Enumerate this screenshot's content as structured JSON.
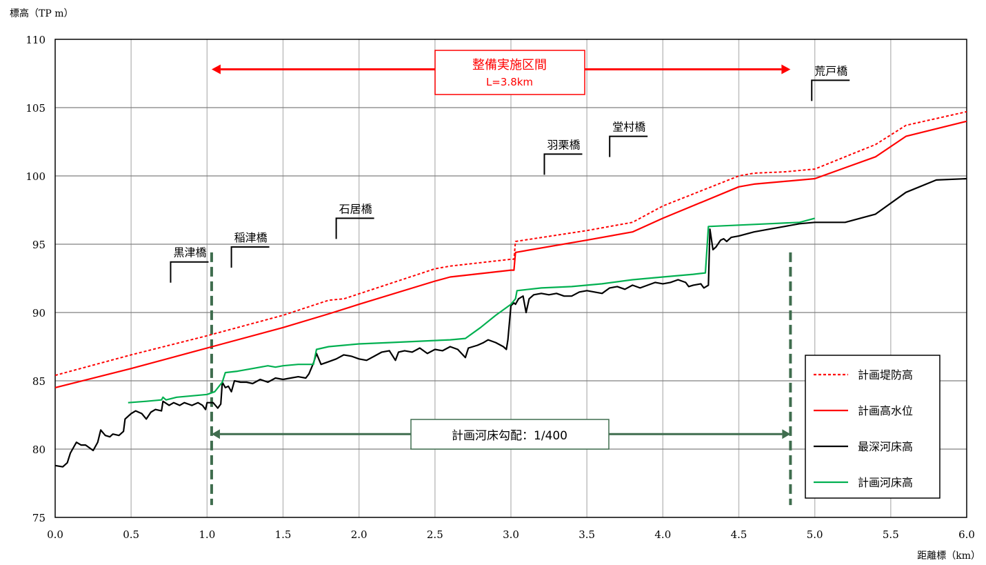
{
  "chart_data": {
    "type": "line",
    "ylabel": "標高（TP m）",
    "xlabel": "距離標（km）",
    "xlim": [
      0.0,
      6.0
    ],
    "ylim": [
      75,
      110
    ],
    "xticks": [
      0.0,
      0.5,
      1.0,
      1.5,
      2.0,
      2.5,
      3.0,
      3.5,
      4.0,
      4.5,
      5.0,
      5.5,
      6.0
    ],
    "xtick_labels": [
      "0.0",
      "0.5",
      "1.0",
      "1.5",
      "2.0",
      "2.5",
      "3.0",
      "3.5",
      "4.0",
      "4.5",
      "5.0",
      "5.5",
      "6.0"
    ],
    "yticks": [
      75,
      80,
      85,
      90,
      95,
      100,
      105,
      110
    ],
    "ytick_labels": [
      "75",
      "80",
      "85",
      "90",
      "95",
      "100",
      "105",
      "110"
    ],
    "grid": true,
    "legend_position": "right",
    "series": [
      {
        "name": "計画堤防高",
        "color": "#ff0000",
        "style": "dotted",
        "points": [
          [
            0.0,
            85.4
          ],
          [
            0.5,
            86.9
          ],
          [
            1.0,
            88.3
          ],
          [
            1.5,
            89.8
          ],
          [
            1.8,
            90.9
          ],
          [
            1.9,
            91.0
          ],
          [
            2.5,
            93.2
          ],
          [
            2.6,
            93.4
          ],
          [
            3.0,
            93.9
          ],
          [
            3.02,
            93.9
          ],
          [
            3.03,
            95.2
          ],
          [
            3.5,
            96.0
          ],
          [
            3.8,
            96.6
          ],
          [
            4.0,
            97.8
          ],
          [
            4.5,
            100.0
          ],
          [
            4.6,
            100.2
          ],
          [
            4.8,
            100.3
          ],
          [
            5.0,
            100.5
          ],
          [
            5.2,
            101.4
          ],
          [
            5.4,
            102.3
          ],
          [
            5.6,
            103.7
          ],
          [
            6.0,
            104.7
          ]
        ]
      },
      {
        "name": "計画高水位",
        "color": "#ff0000",
        "style": "solid",
        "points": [
          [
            0.0,
            84.5
          ],
          [
            0.5,
            85.9
          ],
          [
            1.0,
            87.4
          ],
          [
            1.5,
            88.9
          ],
          [
            1.8,
            89.9
          ],
          [
            2.0,
            90.6
          ],
          [
            2.5,
            92.3
          ],
          [
            2.6,
            92.6
          ],
          [
            3.0,
            93.1
          ],
          [
            3.02,
            93.1
          ],
          [
            3.03,
            94.4
          ],
          [
            3.5,
            95.3
          ],
          [
            3.8,
            95.9
          ],
          [
            4.0,
            96.9
          ],
          [
            4.5,
            99.2
          ],
          [
            4.6,
            99.4
          ],
          [
            5.0,
            99.8
          ],
          [
            5.2,
            100.6
          ],
          [
            5.4,
            101.4
          ],
          [
            5.6,
            102.9
          ],
          [
            6.0,
            104.0
          ]
        ]
      },
      {
        "name": "最深河床高",
        "color": "#000000",
        "style": "solid",
        "points": [
          [
            0.0,
            78.8
          ],
          [
            0.05,
            78.7
          ],
          [
            0.08,
            79.0
          ],
          [
            0.1,
            79.7
          ],
          [
            0.14,
            80.5
          ],
          [
            0.17,
            80.3
          ],
          [
            0.2,
            80.3
          ],
          [
            0.25,
            79.9
          ],
          [
            0.28,
            80.5
          ],
          [
            0.3,
            81.4
          ],
          [
            0.33,
            81.0
          ],
          [
            0.36,
            80.9
          ],
          [
            0.38,
            81.1
          ],
          [
            0.42,
            81.0
          ],
          [
            0.45,
            81.3
          ],
          [
            0.46,
            82.2
          ],
          [
            0.5,
            82.6
          ],
          [
            0.53,
            82.8
          ],
          [
            0.57,
            82.6
          ],
          [
            0.6,
            82.2
          ],
          [
            0.63,
            82.7
          ],
          [
            0.66,
            82.9
          ],
          [
            0.7,
            82.8
          ],
          [
            0.71,
            83.5
          ],
          [
            0.75,
            83.2
          ],
          [
            0.78,
            83.4
          ],
          [
            0.82,
            83.2
          ],
          [
            0.85,
            83.4
          ],
          [
            0.9,
            83.2
          ],
          [
            0.94,
            83.4
          ],
          [
            0.97,
            83.2
          ],
          [
            0.99,
            82.9
          ],
          [
            1.0,
            83.4
          ],
          [
            1.04,
            83.4
          ],
          [
            1.07,
            83.0
          ],
          [
            1.09,
            83.3
          ],
          [
            1.1,
            84.9
          ],
          [
            1.12,
            84.5
          ],
          [
            1.14,
            84.6
          ],
          [
            1.16,
            84.2
          ],
          [
            1.18,
            85.0
          ],
          [
            1.22,
            84.9
          ],
          [
            1.26,
            84.9
          ],
          [
            1.3,
            84.8
          ],
          [
            1.35,
            85.1
          ],
          [
            1.4,
            84.9
          ],
          [
            1.45,
            85.2
          ],
          [
            1.5,
            85.1
          ],
          [
            1.55,
            85.2
          ],
          [
            1.6,
            85.3
          ],
          [
            1.65,
            85.2
          ],
          [
            1.67,
            85.5
          ],
          [
            1.7,
            86.3
          ],
          [
            1.72,
            87.0
          ],
          [
            1.75,
            86.2
          ],
          [
            1.8,
            86.4
          ],
          [
            1.85,
            86.6
          ],
          [
            1.9,
            86.9
          ],
          [
            1.95,
            86.8
          ],
          [
            2.0,
            86.6
          ],
          [
            2.05,
            86.5
          ],
          [
            2.1,
            86.8
          ],
          [
            2.15,
            87.1
          ],
          [
            2.2,
            87.2
          ],
          [
            2.24,
            86.5
          ],
          [
            2.26,
            87.1
          ],
          [
            2.3,
            87.2
          ],
          [
            2.35,
            87.1
          ],
          [
            2.4,
            87.4
          ],
          [
            2.45,
            87.0
          ],
          [
            2.5,
            87.3
          ],
          [
            2.55,
            87.2
          ],
          [
            2.6,
            87.5
          ],
          [
            2.65,
            87.3
          ],
          [
            2.7,
            86.7
          ],
          [
            2.72,
            87.4
          ],
          [
            2.78,
            87.6
          ],
          [
            2.82,
            87.8
          ],
          [
            2.85,
            88.0
          ],
          [
            2.9,
            87.8
          ],
          [
            2.95,
            87.5
          ],
          [
            2.97,
            87.3
          ],
          [
            2.98,
            88.0
          ],
          [
            3.0,
            90.5
          ],
          [
            3.02,
            90.7
          ],
          [
            3.03,
            90.6
          ],
          [
            3.05,
            91.0
          ],
          [
            3.08,
            91.2
          ],
          [
            3.1,
            90.0
          ],
          [
            3.12,
            91.0
          ],
          [
            3.15,
            91.3
          ],
          [
            3.2,
            91.4
          ],
          [
            3.25,
            91.3
          ],
          [
            3.3,
            91.4
          ],
          [
            3.35,
            91.2
          ],
          [
            3.4,
            91.2
          ],
          [
            3.45,
            91.5
          ],
          [
            3.5,
            91.6
          ],
          [
            3.55,
            91.5
          ],
          [
            3.6,
            91.4
          ],
          [
            3.65,
            91.8
          ],
          [
            3.7,
            91.9
          ],
          [
            3.75,
            91.7
          ],
          [
            3.8,
            92.0
          ],
          [
            3.85,
            91.8
          ],
          [
            3.9,
            92.0
          ],
          [
            3.95,
            92.2
          ],
          [
            4.0,
            92.1
          ],
          [
            4.05,
            92.2
          ],
          [
            4.1,
            92.4
          ],
          [
            4.15,
            92.2
          ],
          [
            4.17,
            91.9
          ],
          [
            4.2,
            92.0
          ],
          [
            4.25,
            92.1
          ],
          [
            4.27,
            91.8
          ],
          [
            4.3,
            92.0
          ],
          [
            4.31,
            96.1
          ],
          [
            4.33,
            94.6
          ],
          [
            4.35,
            94.8
          ],
          [
            4.38,
            95.3
          ],
          [
            4.4,
            95.4
          ],
          [
            4.42,
            95.2
          ],
          [
            4.45,
            95.5
          ],
          [
            4.5,
            95.6
          ],
          [
            4.6,
            95.9
          ],
          [
            4.7,
            96.1
          ],
          [
            4.8,
            96.3
          ],
          [
            4.9,
            96.5
          ],
          [
            5.0,
            96.6
          ],
          [
            5.2,
            96.6
          ],
          [
            5.4,
            97.2
          ],
          [
            5.6,
            98.8
          ],
          [
            5.8,
            99.7
          ],
          [
            6.0,
            99.8
          ]
        ]
      },
      {
        "name": "計画河床高",
        "color": "#00b050",
        "style": "solid",
        "points": [
          [
            0.48,
            83.4
          ],
          [
            0.6,
            83.5
          ],
          [
            0.7,
            83.6
          ],
          [
            0.71,
            83.8
          ],
          [
            0.73,
            83.6
          ],
          [
            0.8,
            83.8
          ],
          [
            0.9,
            83.9
          ],
          [
            1.0,
            84.0
          ],
          [
            1.05,
            84.2
          ],
          [
            1.1,
            84.9
          ],
          [
            1.12,
            85.6
          ],
          [
            1.2,
            85.7
          ],
          [
            1.3,
            85.9
          ],
          [
            1.4,
            86.1
          ],
          [
            1.45,
            86.0
          ],
          [
            1.5,
            86.1
          ],
          [
            1.6,
            86.2
          ],
          [
            1.7,
            86.2
          ],
          [
            1.72,
            87.3
          ],
          [
            1.8,
            87.5
          ],
          [
            1.9,
            87.6
          ],
          [
            2.0,
            87.7
          ],
          [
            2.2,
            87.8
          ],
          [
            2.4,
            87.9
          ],
          [
            2.6,
            88.0
          ],
          [
            2.7,
            88.1
          ],
          [
            2.8,
            88.9
          ],
          [
            2.9,
            89.8
          ],
          [
            3.0,
            90.6
          ],
          [
            3.03,
            91.0
          ],
          [
            3.04,
            91.6
          ],
          [
            3.2,
            91.8
          ],
          [
            3.4,
            91.9
          ],
          [
            3.6,
            92.1
          ],
          [
            3.8,
            92.4
          ],
          [
            4.0,
            92.6
          ],
          [
            4.2,
            92.8
          ],
          [
            4.28,
            92.9
          ],
          [
            4.3,
            96.3
          ],
          [
            4.5,
            96.4
          ],
          [
            4.7,
            96.5
          ],
          [
            4.9,
            96.6
          ],
          [
            5.0,
            96.9
          ]
        ]
      }
    ],
    "bridges": [
      {
        "name": "黒津橋",
        "x": 0.76,
        "y": 93.7
      },
      {
        "name": "稲津橋",
        "x": 1.16,
        "y": 94.8
      },
      {
        "name": "石居橋",
        "x": 1.85,
        "y": 96.9
      },
      {
        "name": "羽栗橋",
        "x": 3.22,
        "y": 101.6
      },
      {
        "name": "堂村橋",
        "x": 3.65,
        "y": 102.9
      },
      {
        "name": "荒戸橋",
        "x": 4.98,
        "y": 107.0
      }
    ],
    "annotations": {
      "implementation_section": {
        "title": "整備実施区間",
        "subtitle": "L=3.8km",
        "x_start": 1.03,
        "x_end": 4.84,
        "y": 107.8
      },
      "riverbed_gradient": {
        "text": "計画河床勾配：1/400",
        "x_start": 1.03,
        "x_end": 4.84,
        "y": 81.1
      },
      "vertical_markers": [
        1.03,
        4.84
      ],
      "marker_y_range": [
        75.9,
        94.4
      ]
    }
  }
}
